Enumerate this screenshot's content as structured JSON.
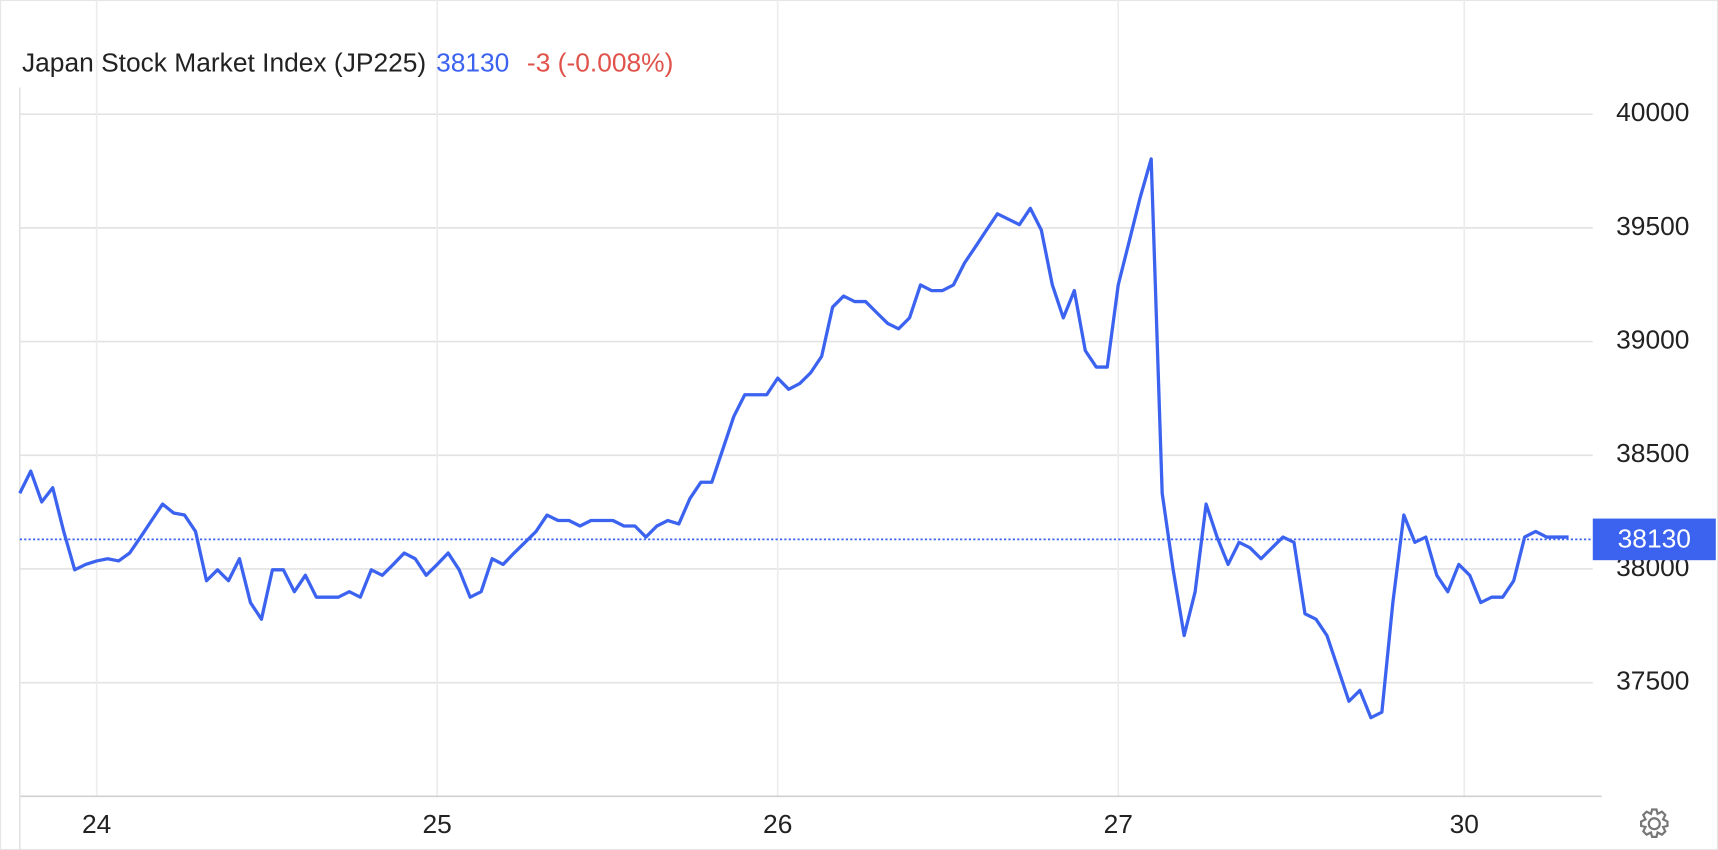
{
  "chart_data": {
    "type": "line",
    "title": "Japan Stock Market Index (JP225)",
    "last_value": 38130,
    "change_label": "-3 (-0.008%)",
    "series": [
      {
        "name": "JP225",
        "color": "#3b63f0",
        "values": [
          38333,
          38430,
          38295,
          38357,
          38165,
          37996,
          38020,
          38035,
          38045,
          38035,
          38070,
          38140,
          38213,
          38285,
          38246,
          38237,
          38165,
          37948,
          37996,
          37948,
          38045,
          37852,
          37779,
          37996,
          37996,
          37900,
          37972,
          37876,
          37876,
          37876,
          37900,
          37876,
          37996,
          37972,
          38020,
          38070,
          38045,
          37972,
          38020,
          38070,
          37996,
          37876,
          37900,
          38045,
          38020,
          38070,
          38117,
          38165,
          38237,
          38213,
          38213,
          38189,
          38213,
          38213,
          38213,
          38189,
          38189,
          38140,
          38189,
          38213,
          38198,
          38309,
          38381,
          38381,
          38526,
          38670,
          38766,
          38766,
          38766,
          38839,
          38790,
          38815,
          38863,
          38935,
          39152,
          39200,
          39176,
          39176,
          39128,
          39080,
          39056,
          39104,
          39249,
          39224,
          39224,
          39249,
          39345,
          39417,
          39490,
          39562,
          39538,
          39514,
          39586,
          39490,
          39249,
          39104,
          39224,
          38960,
          38888,
          38888,
          39249,
          39441,
          39634,
          39803,
          38333,
          37996,
          37707,
          37900,
          38285,
          38140,
          38020,
          38117,
          38093,
          38045,
          38093,
          38140,
          38117,
          37803,
          37779,
          37707,
          37563,
          37418,
          37466,
          37346,
          37370,
          37852,
          38237,
          38117,
          38140,
          37972,
          37900,
          38020,
          37972,
          37852,
          37876,
          37876,
          37948,
          38140,
          38165,
          38140,
          38140,
          38140
        ]
      }
    ],
    "xlim": [
      0,
      143.2
    ],
    "xticks": [
      {
        "value": 7,
        "label": "24"
      },
      {
        "value": 38,
        "label": "25"
      },
      {
        "value": 69,
        "label": "26"
      },
      {
        "value": 100,
        "label": "27"
      },
      {
        "value": 131.5,
        "label": "30"
      }
    ],
    "ylim": [
      37000,
      40400
    ],
    "yticks": [
      37500,
      38000,
      38500,
      39000,
      39500,
      40000
    ],
    "grid": true,
    "change_color": "#e0524a",
    "last_line_style": "dotted"
  }
}
